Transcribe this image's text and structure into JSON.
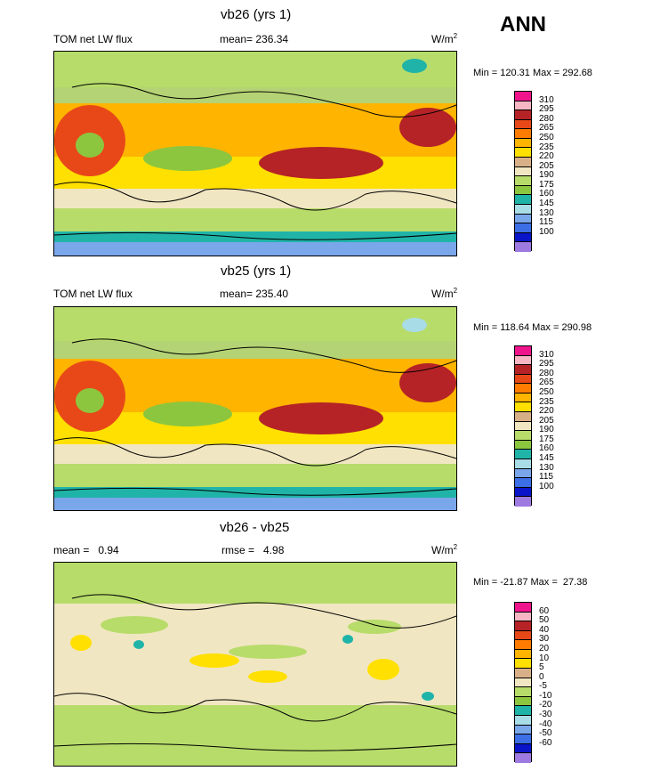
{
  "season": "ANN",
  "palette": [
    "#9e7be0",
    "#0a14c8",
    "#3c6ee6",
    "#7aa6ea",
    "#a8dce6",
    "#20b4a8",
    "#8cc63f",
    "#b7dc6a",
    "#f1e6c2",
    "#d8b088",
    "#ffe000",
    "#ffb400",
    "#ff7c00",
    "#e84818",
    "#b52326",
    "#f7b6c4",
    "#f0148c"
  ],
  "panels": [
    {
      "title": "vb26 (yrs 1)",
      "left_label": "TOM net LW flux",
      "mean_label": "mean= 236.34",
      "units": "W/m",
      "units_sup": "2",
      "minmax": "Min = 120.31 Max = 292.68",
      "levels": [
        "310",
        "295",
        "280",
        "265",
        "250",
        "235",
        "220",
        "205",
        "190",
        "175",
        "160",
        "145",
        "130",
        "115",
        "100"
      ]
    },
    {
      "title": "vb25 (yrs 1)",
      "left_label": "TOM net LW flux",
      "mean_label": "mean= 235.40",
      "units": "W/m",
      "units_sup": "2",
      "minmax": "Min = 118.64 Max = 290.98",
      "levels": [
        "310",
        "295",
        "280",
        "265",
        "250",
        "235",
        "220",
        "205",
        "190",
        "175",
        "160",
        "145",
        "130",
        "115",
        "100"
      ]
    },
    {
      "title": "vb26 - vb25",
      "left_label": "mean =   0.94",
      "mean_label": "rmse =   4.98",
      "units": "W/m",
      "units_sup": "2",
      "minmax": "Min = -21.87 Max =  27.38",
      "levels": [
        "60",
        "50",
        "40",
        "30",
        "20",
        "10",
        "5",
        "0",
        "-5",
        "-10",
        "-20",
        "-30",
        "-40",
        "-50",
        "-60"
      ]
    }
  ],
  "chart_data": [
    {
      "type": "heatmap",
      "title": "vb26 (yrs 1)",
      "subtitle": "TOM net LW flux",
      "mean": 236.34,
      "units": "W/m2",
      "min": 120.31,
      "max": 292.68,
      "contour_levels": [
        100,
        115,
        130,
        145,
        160,
        175,
        190,
        205,
        220,
        235,
        250,
        265,
        280,
        295,
        310
      ]
    },
    {
      "type": "heatmap",
      "title": "vb25 (yrs 1)",
      "subtitle": "TOM net LW flux",
      "mean": 235.4,
      "units": "W/m2",
      "min": 118.64,
      "max": 290.98,
      "contour_levels": [
        100,
        115,
        130,
        145,
        160,
        175,
        190,
        205,
        220,
        235,
        250,
        265,
        280,
        295,
        310
      ]
    },
    {
      "type": "heatmap",
      "title": "vb26 - vb25",
      "mean": 0.94,
      "rmse": 4.98,
      "units": "W/m2",
      "min": -21.87,
      "max": 27.38,
      "contour_levels": [
        -60,
        -50,
        -40,
        -30,
        -20,
        -10,
        -5,
        0,
        5,
        10,
        20,
        30,
        40,
        50,
        60
      ]
    }
  ]
}
